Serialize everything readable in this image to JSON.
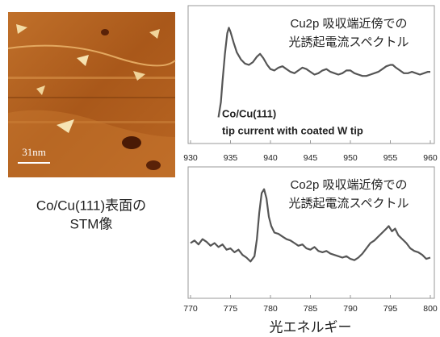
{
  "stm_image": {
    "scale_label": "31nm",
    "caption": [
      "Co/Cu(111)表面の",
      "STM像"
    ]
  },
  "chart_data": [
    {
      "type": "line",
      "title": [
        "Cu2p 吸収端近傍での",
        "光誘起電流スペクトル"
      ],
      "annotations": [
        "Co/Cu(111)",
        "tip current with coated W tip"
      ],
      "x": [
        933.5,
        933.8,
        934.0,
        934.3,
        934.6,
        934.8,
        935.0,
        935.4,
        935.8,
        936.3,
        936.8,
        937.3,
        937.8,
        938.3,
        938.7,
        939.1,
        939.6,
        940.0,
        940.5,
        941,
        941.5,
        942,
        942.5,
        943,
        943.5,
        944,
        944.5,
        945,
        945.5,
        946,
        946.5,
        947,
        947.5,
        948,
        948.5,
        949,
        949.5,
        950,
        950.5,
        951,
        951.5,
        952,
        952.5,
        953,
        953.5,
        954,
        954.5,
        955,
        955.3,
        955.7,
        956.2,
        956.7,
        957.2,
        957.7,
        958.2,
        958.7,
        959.2,
        959.7,
        960
      ],
      "series": [
        {
          "color": "#555555",
          "values": [
            19,
            30,
            45,
            65,
            80,
            84,
            81,
            73,
            66,
            61,
            58,
            57,
            59,
            63,
            65,
            62,
            57,
            54,
            53,
            55,
            56,
            54,
            52,
            51,
            53,
            55,
            54,
            52,
            50,
            51,
            53,
            54,
            52,
            51,
            50,
            51,
            53,
            53,
            51,
            50,
            49,
            49,
            50,
            51,
            52,
            54,
            56,
            57,
            57,
            55,
            53,
            51,
            51,
            52,
            51,
            50,
            51,
            52,
            52
          ]
        }
      ],
      "xlim": [
        930,
        960
      ],
      "ylim": [
        0,
        100
      ],
      "xticks": [
        930,
        935,
        940,
        945,
        950,
        955,
        960
      ]
    },
    {
      "type": "line",
      "title": [
        "Co2p 吸収端近傍での",
        "光誘起電流スペクトル"
      ],
      "xlabel": "光エネルギー",
      "x": [
        770,
        770.5,
        771,
        771.5,
        772,
        772.5,
        773,
        773.5,
        774,
        774.5,
        775,
        775.5,
        776,
        776.5,
        777,
        777.5,
        778,
        778.3,
        778.6,
        778.9,
        779.2,
        779.5,
        779.8,
        780.1,
        780.5,
        781,
        781.5,
        782,
        782.5,
        783,
        783.5,
        784,
        784.5,
        785,
        785.5,
        786,
        786.5,
        787,
        787.5,
        788,
        788.5,
        789,
        789.5,
        790,
        790.5,
        791,
        791.5,
        792,
        792.5,
        793,
        793.5,
        794,
        794.5,
        794.8,
        795.2,
        795.6,
        796,
        796.5,
        797,
        797.5,
        798,
        798.5,
        799,
        799.5,
        800
      ],
      "series": [
        {
          "color": "#555555",
          "values": [
            42,
            44,
            41,
            45,
            43,
            40,
            42,
            39,
            41,
            37,
            38,
            35,
            37,
            33,
            31,
            28,
            32,
            45,
            65,
            80,
            83,
            76,
            62,
            55,
            50,
            49,
            47,
            45,
            44,
            42,
            40,
            41,
            38,
            37,
            39,
            36,
            35,
            36,
            34,
            33,
            32,
            31,
            32,
            30,
            29,
            31,
            34,
            38,
            42,
            44,
            47,
            50,
            53,
            55,
            51,
            53,
            48,
            45,
            42,
            38,
            36,
            35,
            33,
            30,
            31
          ]
        }
      ],
      "xlim": [
        770,
        800
      ],
      "ylim": [
        0,
        100
      ],
      "xticks": [
        770,
        775,
        780,
        785,
        790,
        795,
        800
      ]
    }
  ]
}
